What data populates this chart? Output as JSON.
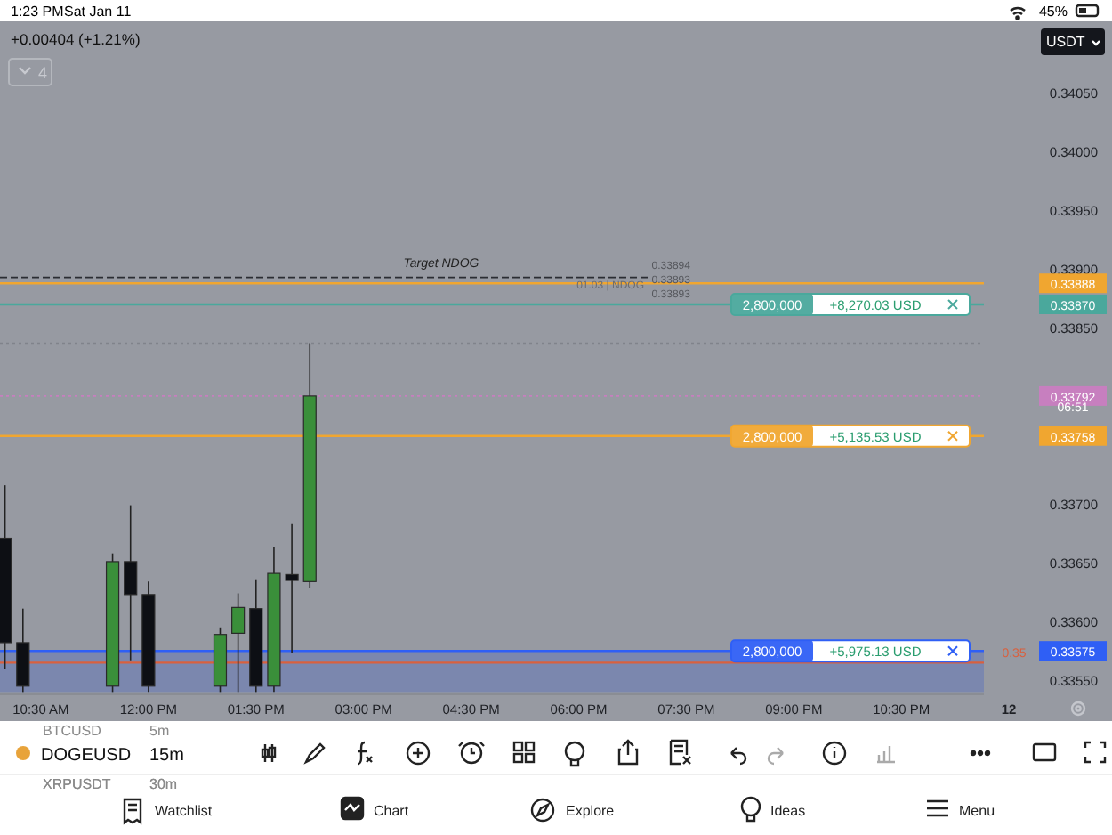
{
  "chart_data": {
    "type": "candlestick",
    "title": "+0.00404 (+1.21%)",
    "x": [
      10,
      10.25,
      11.5,
      11.75,
      12,
      13,
      13.25,
      13.5,
      13.75,
      14,
      14.25
    ],
    "ohlc": [
      [
        0.33671,
        0.33716,
        0.3356,
        0.33582
      ],
      [
        0.33582,
        0.33611,
        0.3354,
        0.33545
      ],
      [
        0.33545,
        0.33658,
        0.3354,
        0.33651
      ],
      [
        0.33651,
        0.33699,
        0.33567,
        0.33623
      ],
      [
        0.33623,
        0.33634,
        0.3354,
        0.33545
      ],
      [
        0.33545,
        0.33595,
        0.3354,
        0.33589
      ],
      [
        0.3359,
        0.33624,
        0.3354,
        0.33612
      ],
      [
        0.33611,
        0.33636,
        0.3354,
        0.33545
      ],
      [
        0.33545,
        0.33663,
        0.3354,
        0.33641
      ],
      [
        0.3364,
        0.33683,
        0.33573,
        0.33635
      ],
      [
        0.33634,
        0.33837,
        0.33629,
        0.33792
      ]
    ],
    "colors": [
      "#0d0f14",
      "#0d0f14",
      "#3a8f3a",
      "#0d0f14",
      "#0d0f14",
      "#3a8f3a",
      "#3a8f3a",
      "#0d0f14",
      "#3a8f3a",
      "#0d0f14",
      "#3a8f3a"
    ],
    "xlim": [
      9.93,
      23.65
    ],
    "ylim": [
      0.33538,
      0.34111
    ],
    "xticks": [
      {
        "value": 10.5,
        "label": "10:30 AM"
      },
      {
        "value": 12,
        "label": "12:00 PM"
      },
      {
        "value": 13.5,
        "label": "01:30 PM"
      },
      {
        "value": 15,
        "label": "03:00 PM"
      },
      {
        "value": 16.5,
        "label": "04:30 PM"
      },
      {
        "value": 18,
        "label": "06:00 PM"
      },
      {
        "value": 19.5,
        "label": "07:30 PM"
      },
      {
        "value": 21,
        "label": "09:00 PM"
      },
      {
        "value": 22.5,
        "label": "10:30 PM"
      }
    ],
    "yticks": [
      {
        "value": 0.3405,
        "label": "0.34050"
      },
      {
        "value": 0.34,
        "label": "0.34000"
      },
      {
        "value": 0.3395,
        "label": "0.33950"
      },
      {
        "value": 0.339,
        "label": "0.33900"
      },
      {
        "value": 0.3385,
        "label": "0.33850"
      },
      {
        "value": 0.337,
        "label": "0.33700"
      },
      {
        "value": 0.3365,
        "label": "0.33650"
      },
      {
        "value": 0.336,
        "label": "0.33600"
      },
      {
        "value": 0.3355,
        "label": "0.33550"
      }
    ],
    "grid": false,
    "ref_lines": [
      {
        "axis": "y",
        "value": 0.33893,
        "label": "Target NDOG",
        "color": "#2b2d33",
        "line_style": "dashed"
      },
      {
        "axis": "y",
        "value": 0.33888,
        "label": "0.33888",
        "color": "#f0a630",
        "line_style": "solid"
      },
      {
        "axis": "y",
        "value": 0.3387,
        "label": "0.33870",
        "color": "#4aa89c",
        "line_style": "solid"
      },
      {
        "axis": "y",
        "value": 0.33837,
        "color": "#80838b",
        "line_style": "dotted"
      },
      {
        "axis": "y",
        "value": 0.33792,
        "label": "0.33792",
        "color": "#c77fbf",
        "line_style": "dotted"
      },
      {
        "axis": "y",
        "value": 0.33758,
        "label": "0.33758",
        "color": "#f0a630",
        "line_style": "solid"
      },
      {
        "axis": "y",
        "value": 0.33575,
        "label": "0.33575",
        "color": "#2f5ff5",
        "line_style": "solid"
      },
      {
        "axis": "y",
        "value": 0.33565,
        "color": "#d9603e",
        "line_style": "solid"
      }
    ],
    "bands": [
      {
        "axis": "y",
        "from": 0.3354,
        "to": 0.33575,
        "color": "#7b87ae"
      }
    ],
    "annotations": [
      "1:23 PM",
      "Sat Jan 11",
      "45%",
      "USDT",
      "4",
      "0.33894",
      "0.33893",
      "01.03 | NDOG",
      "0.33893",
      "0.35",
      "06:51",
      "BTCUSD",
      "5m",
      "DOGEUSD",
      "15m",
      "XRPUSDT",
      "30m",
      "Watchlist",
      "Chart",
      "Explore",
      "Ideas",
      "Menu",
      "12",
      {
        "text": "2,800,000",
        "y": 0.3387
      },
      {
        "text": "+8,270.03 USD",
        "y": 0.3387
      },
      {
        "text": "2,800,000",
        "y": 0.33758
      },
      {
        "text": "+5,135.53 USD",
        "y": 0.33758
      },
      {
        "text": "2,800,000",
        "y": 0.33575
      },
      {
        "text": "+5,975.13 USD",
        "y": 0.33575
      }
    ]
  }
}
